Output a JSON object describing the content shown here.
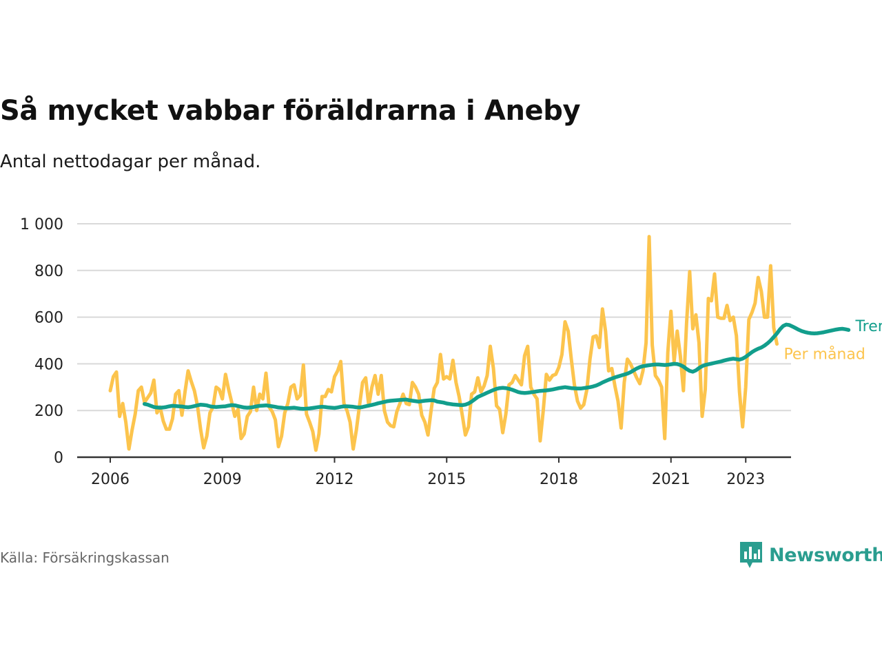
{
  "title": "Så mycket vabbar föräldrarna i Aneby",
  "subtitle": "Antal nettodagar per månad.",
  "source": "Källa: Försäkringskassan",
  "brand": {
    "name": "Newsworthy",
    "icon": "newsworthy-logo-icon",
    "color": "#2a9d8f"
  },
  "colors": {
    "monthly": "#fcc44d",
    "trend": "#129e8c",
    "grid": "#d9d9d9",
    "axis": "#333333"
  },
  "chart_data": {
    "type": "line",
    "xlim": [
      2006.0,
      2024.0
    ],
    "ylim": [
      0,
      1000
    ],
    "x_ticks": [
      2006,
      2009,
      2012,
      2015,
      2018,
      2021,
      2023
    ],
    "x_tick_labels": [
      "2006",
      "2009",
      "2012",
      "2015",
      "2018",
      "2021",
      "2023"
    ],
    "y_ticks": [
      0,
      200,
      400,
      600,
      800,
      1000
    ],
    "y_tick_labels": [
      "0",
      "200",
      "400",
      "600",
      "800",
      "1 000"
    ],
    "grid": true,
    "legend": "direct labels at line ends (right)",
    "series": [
      {
        "name": "Per månad",
        "x_start": 2006.0,
        "step": 0.08333333,
        "values": [
          285,
          345,
          365,
          175,
          230,
          150,
          35,
          115,
          185,
          285,
          300,
          235,
          255,
          275,
          330,
          190,
          215,
          155,
          120,
          120,
          165,
          270,
          285,
          180,
          280,
          370,
          325,
          285,
          220,
          120,
          40,
          90,
          190,
          215,
          300,
          290,
          250,
          355,
          290,
          235,
          175,
          205,
          80,
          100,
          175,
          195,
          300,
          200,
          270,
          250,
          360,
          215,
          195,
          160,
          45,
          90,
          190,
          230,
          300,
          310,
          250,
          265,
          395,
          185,
          150,
          110,
          30,
          100,
          260,
          260,
          290,
          280,
          345,
          370,
          410,
          230,
          200,
          150,
          35,
          115,
          220,
          320,
          340,
          220,
          300,
          350,
          270,
          350,
          200,
          150,
          135,
          130,
          195,
          230,
          270,
          230,
          225,
          320,
          300,
          270,
          180,
          150,
          95,
          200,
          295,
          320,
          440,
          335,
          345,
          335,
          415,
          320,
          260,
          180,
          95,
          130,
          270,
          280,
          340,
          280,
          305,
          350,
          475,
          380,
          220,
          205,
          105,
          185,
          310,
          320,
          350,
          330,
          310,
          435,
          475,
          300,
          270,
          250,
          70,
          200,
          355,
          330,
          350,
          355,
          385,
          440,
          580,
          540,
          420,
          310,
          240,
          210,
          225,
          290,
          420,
          515,
          520,
          470,
          635,
          540,
          370,
          380,
          305,
          240,
          125,
          320,
          420,
          400,
          370,
          340,
          315,
          370,
          490,
          945,
          480,
          350,
          330,
          300,
          80,
          450,
          625,
          410,
          540,
          435,
          285,
          575,
          795,
          550,
          610,
          490,
          175,
          290,
          680,
          670,
          785,
          600,
          595,
          595,
          650,
          585,
          600,
          520,
          280,
          130,
          300,
          590,
          620,
          660,
          770,
          710,
          600,
          600,
          820,
          555,
          485
        ]
      },
      {
        "name": "Trend",
        "x_start": 2006.917,
        "step": 0.08333333,
        "values": [
          228,
          225,
          220,
          215,
          213,
          212,
          213,
          215,
          218,
          220,
          219,
          218,
          217,
          215,
          214,
          216,
          219,
          222,
          225,
          224,
          222,
          218,
          216,
          215,
          216,
          217,
          218,
          221,
          223,
          222,
          219,
          216,
          213,
          212,
          213,
          215,
          218,
          220,
          221,
          222,
          220,
          218,
          216,
          213,
          212,
          210,
          210,
          211,
          212,
          210,
          208,
          207,
          208,
          209,
          211,
          213,
          215,
          216,
          215,
          213,
          212,
          211,
          213,
          216,
          218,
          218,
          217,
          216,
          214,
          213,
          215,
          218,
          221,
          224,
          227,
          231,
          234,
          237,
          240,
          242,
          243,
          244,
          245,
          246,
          247,
          244,
          242,
          240,
          238,
          240,
          242,
          243,
          244,
          243,
          238,
          236,
          234,
          230,
          228,
          226,
          225,
          224,
          223,
          225,
          230,
          238,
          248,
          258,
          264,
          270,
          276,
          282,
          288,
          293,
          296,
          297,
          296,
          293,
          289,
          284,
          279,
          276,
          275,
          276,
          278,
          280,
          282,
          284,
          285,
          286,
          288,
          290,
          293,
          296,
          298,
          300,
          298,
          296,
          295,
          294,
          294,
          296,
          298,
          300,
          303,
          307,
          313,
          320,
          326,
          332,
          337,
          342,
          346,
          350,
          354,
          358,
          364,
          372,
          380,
          386,
          390,
          392,
          394,
          396,
          397,
          397,
          396,
          395,
          396,
          398,
          400,
          399,
          395,
          388,
          378,
          370,
          366,
          372,
          382,
          390,
          395,
          398,
          401,
          404,
          407,
          410,
          414,
          417,
          420,
          422,
          420,
          418,
          422,
          430,
          440,
          450,
          458,
          465,
          470,
          478,
          488,
          500,
          515,
          530,
          548,
          562,
          568,
          566,
          560,
          553,
          546,
          540,
          536,
          533,
          531,
          530,
          531,
          533,
          535,
          538,
          541,
          544,
          547,
          549,
          550,
          548,
          545
        ]
      }
    ]
  }
}
